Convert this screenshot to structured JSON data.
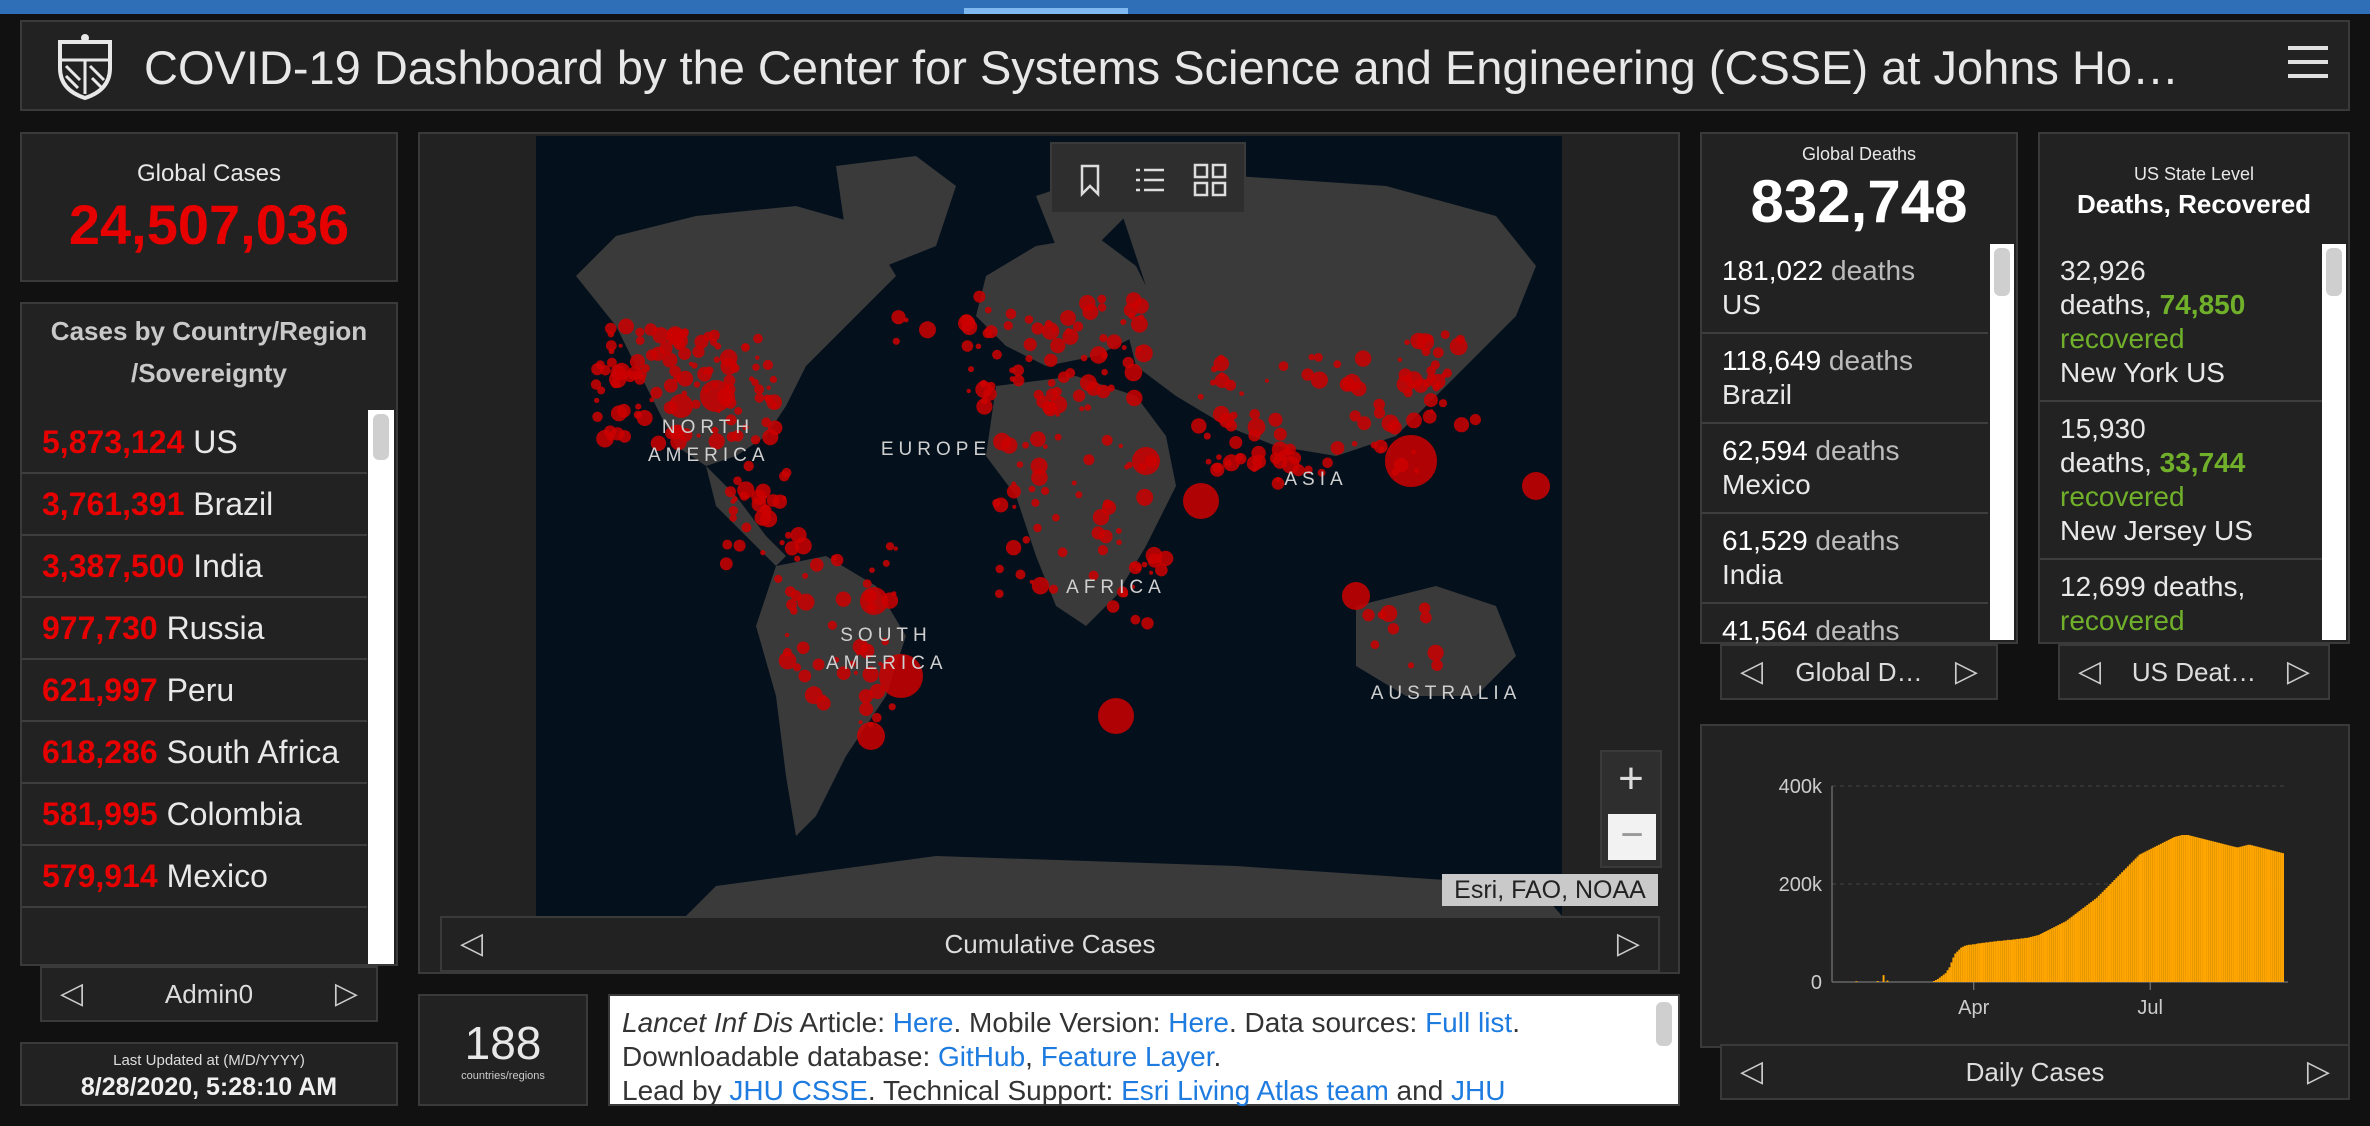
{
  "header": {
    "title": "COVID-19 Dashboard by the Center for Systems Science and Engineering (CSSE) at Johns Ho…"
  },
  "global_cases": {
    "label": "Global Cases",
    "value": "24,507,036"
  },
  "country_panel": {
    "heading_line1": "Cases by Country/Region",
    "heading_line2": "/Sovereignty",
    "rows": [
      {
        "count": "5,873,124",
        "name": "US"
      },
      {
        "count": "3,761,391",
        "name": "Brazil"
      },
      {
        "count": "3,387,500",
        "name": "India"
      },
      {
        "count": "977,730",
        "name": "Russia"
      },
      {
        "count": "621,997",
        "name": "Peru"
      },
      {
        "count": "618,286",
        "name": "South Africa"
      },
      {
        "count": "581,995",
        "name": "Colombia"
      },
      {
        "count": "579,914",
        "name": "Mexico"
      }
    ],
    "pager_label": "Admin0"
  },
  "last_updated": {
    "label": "Last Updated at (M/D/YYYY)",
    "value": "8/28/2020, 5:28:10 AM"
  },
  "map": {
    "continents": {
      "north_america": "NORTH AMERICA",
      "europe": "EUROPE",
      "asia": "ASIA",
      "africa": "AFRICA",
      "south_america": "SOUTH AMERICA",
      "australia": "AUSTRALIA"
    },
    "attribution": "Esri, FAO, NOAA",
    "zoom_in": "+",
    "zoom_out": "−",
    "pager_label": "Cumulative Cases",
    "tool_icons": [
      "bookmark-icon",
      "list-icon",
      "basemap-gallery-icon"
    ],
    "land_color": "#3a3a3a",
    "ocean_color": "#04101c",
    "marker_color": "#cc0000"
  },
  "countries_count": {
    "value": "188",
    "label": "countries/regions"
  },
  "info": {
    "lancet": "Lancet Inf Dis",
    "article": " Article: ",
    "here1": "Here",
    "mobile": ". Mobile Version: ",
    "here2": "Here",
    "sources": ". Data sources: ",
    "full_list": "Full list",
    "downloadable": ". Downloadable database: ",
    "github": "GitHub",
    "comma": ", ",
    "feature_layer": "Feature Layer",
    "period": ".",
    "lead_by": "Lead by ",
    "jhu_csse": "JHU CSSE",
    "tech_support": ". Technical Support: ",
    "esri_team": "Esri Living Atlas team",
    "and": " and ",
    "jhu": "JHU"
  },
  "global_deaths": {
    "label": "Global Deaths",
    "value": "832,748",
    "word": "deaths",
    "rows": [
      {
        "count": "181,022",
        "name": "US"
      },
      {
        "count": "118,649",
        "name": "Brazil"
      },
      {
        "count": "62,594",
        "name": "Mexico"
      },
      {
        "count": "61,529",
        "name": "India"
      },
      {
        "count": "41,564",
        "name": ""
      }
    ],
    "pager_label": "Global D…"
  },
  "us_state": {
    "label": "US State Level",
    "label2": "Deaths, Recovered",
    "rows": [
      {
        "deaths": "32,926",
        "deaths_word": "deaths, ",
        "recovered": "74,850",
        "recovered_word": "recovered",
        "name": "New York US"
      },
      {
        "deaths": "15,930",
        "deaths_word": "deaths, ",
        "recovered": "33,744",
        "recovered_word": "recovered",
        "name": "New Jersey US"
      },
      {
        "deaths": "12,699",
        "deaths_word": "deaths, ",
        "recovered": "",
        "recovered_word": "recovered",
        "name": ""
      }
    ],
    "pager_label": "US Deat…"
  },
  "chart_data": {
    "type": "bar",
    "title": "",
    "xlabel": "",
    "ylabel": "",
    "x_ticks": [
      "Apr",
      "Jul"
    ],
    "y_ticks": [
      "0",
      "200k",
      "400k"
    ],
    "ylim": [
      0,
      400000
    ],
    "color": "#ffa600",
    "start_date": "2020-01-22",
    "values": [
      0,
      0,
      0,
      0,
      0,
      0,
      0,
      0,
      0,
      1700,
      0,
      0,
      0,
      0,
      0,
      0,
      0,
      0,
      0,
      0,
      2000,
      0,
      0,
      14000,
      0,
      3000,
      0,
      0,
      0,
      0,
      0,
      0,
      0,
      0,
      0,
      0,
      0,
      0,
      0,
      0,
      0,
      0,
      0,
      0,
      0,
      0,
      0,
      0,
      0,
      2000,
      4000,
      6000,
      9000,
      12000,
      15000,
      18000,
      24000,
      30000,
      40000,
      50000,
      58000,
      62000,
      66000,
      70000,
      72000,
      74000,
      75000,
      76000,
      76000,
      77000,
      77000,
      78000,
      79000,
      79000,
      80000,
      80000,
      81000,
      81000,
      82000,
      82000,
      83000,
      83000,
      84000,
      84000,
      84000,
      85000,
      85000,
      86000,
      86000,
      86000,
      87000,
      87000,
      88000,
      88000,
      89000,
      89000,
      90000,
      90000,
      91000,
      92000,
      93000,
      94000,
      95000,
      96000,
      98000,
      100000,
      102000,
      104000,
      106000,
      108000,
      110000,
      112000,
      114000,
      116000,
      118000,
      120000,
      122000,
      124000,
      127000,
      130000,
      133000,
      136000,
      139000,
      142000,
      145000,
      148000,
      151000,
      154000,
      157000,
      160000,
      163000,
      166000,
      169000,
      172000,
      176000,
      180000,
      184000,
      188000,
      192000,
      196000,
      200000,
      204000,
      208000,
      212000,
      216000,
      220000,
      224000,
      228000,
      232000,
      236000,
      240000,
      244000,
      248000,
      252000,
      256000,
      260000,
      262000,
      264000,
      266000,
      268000,
      270000,
      272000,
      274000,
      276000,
      278000,
      280000,
      282000,
      284000,
      286000,
      288000,
      290000,
      292000,
      294000,
      296000,
      297000,
      298000,
      299000,
      300000,
      300000,
      300000,
      300000,
      299000,
      298000,
      297000,
      296000,
      295000,
      294000,
      293000,
      292000,
      291000,
      290000,
      289000,
      288000,
      287000,
      286000,
      285000,
      284000,
      283000,
      282000,
      281000,
      280000,
      279000,
      278000,
      277000,
      276000,
      275000,
      275000,
      276000,
      277000,
      278000,
      279000,
      280000,
      280000,
      279000,
      278000,
      277000,
      276000,
      275000,
      274000,
      273000,
      272000,
      271000,
      270000,
      269000,
      268000,
      267000,
      266000,
      265000,
      264000,
      263000
    ],
    "pager_label": "Daily Cases"
  }
}
